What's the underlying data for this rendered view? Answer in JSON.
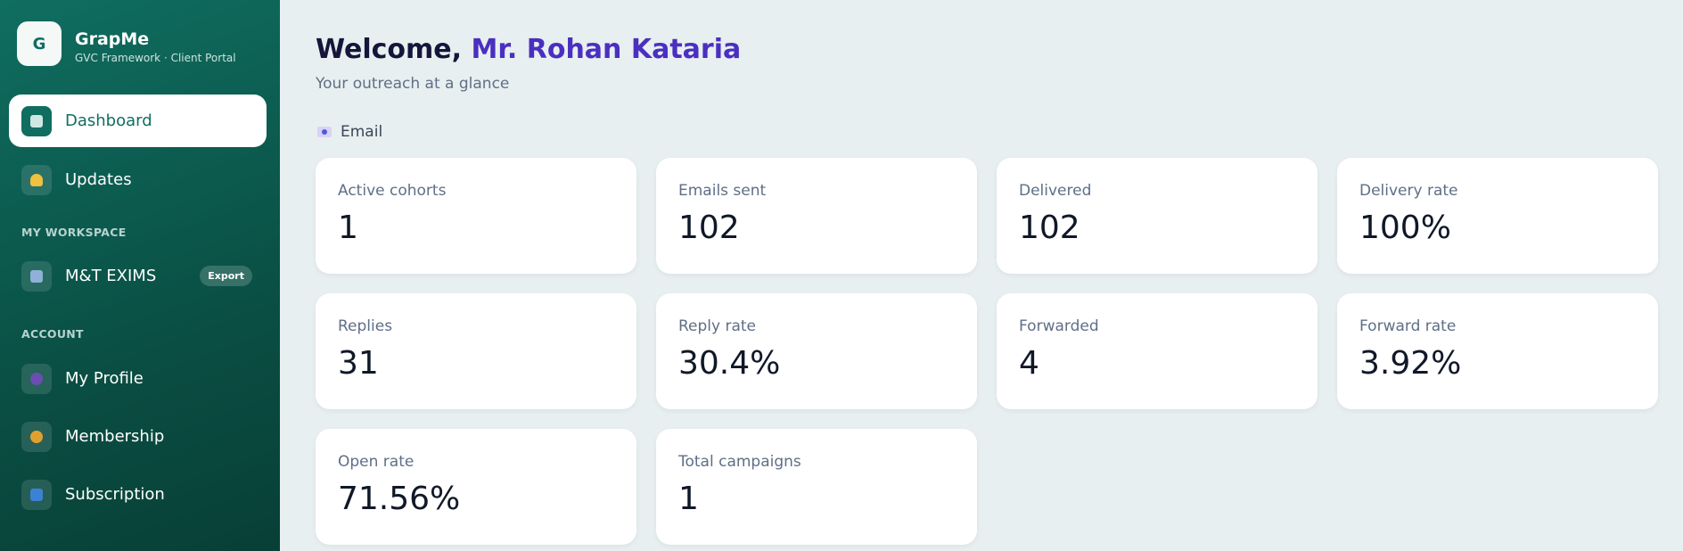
{
  "sidebar": {
    "logo": "G",
    "brand": "GrapMe",
    "brand_subtitle": "GVC Framework · Client Portal",
    "nav": [
      {
        "label": "Dashboard"
      },
      {
        "label": "Updates"
      }
    ],
    "workspace_title": "MY WORKSPACE",
    "workspace": {
      "label": "M&T EXIMS",
      "tag": "Export"
    },
    "account_title": "ACCOUNT",
    "account": [
      {
        "label": "My Profile"
      },
      {
        "label": "Membership"
      },
      {
        "label": "Subscription"
      }
    ]
  },
  "main": {
    "greeting": "Welcome,",
    "name": "Mr. Rohan Kataria",
    "subtitle": "Your outreach at a glance",
    "section": "Email",
    "cards": [
      {
        "label": "Active cohorts",
        "value": "1"
      },
      {
        "label": "Emails sent",
        "value": "102"
      },
      {
        "label": "Delivered",
        "value": "102"
      },
      {
        "label": "Delivery rate",
        "value": "100%"
      },
      {
        "label": "Replies",
        "value": "31"
      },
      {
        "label": "Reply rate",
        "value": "30.4%"
      },
      {
        "label": "Forwarded",
        "value": "4"
      },
      {
        "label": "Forward rate",
        "value": "3.92%"
      },
      {
        "label": "Open rate",
        "value": "71.56%"
      },
      {
        "label": "Total campaigns",
        "value": "1"
      }
    ]
  }
}
